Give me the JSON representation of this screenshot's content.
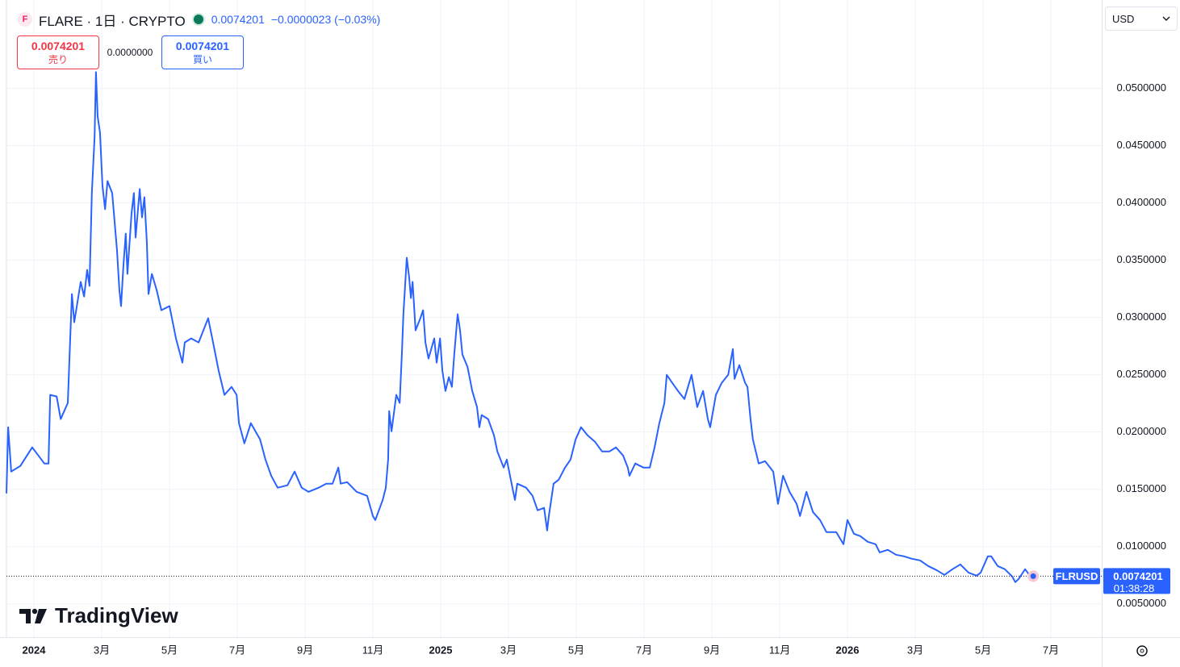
{
  "ui": {
    "title": "FLARE · 1日 · CRYPTO",
    "last": "0.0074201",
    "change": "−0.0000023 (−0.03%)",
    "sell_price": "0.0074201",
    "sell": "売り",
    "spread": "0.0000000",
    "buy_price": "0.0074201",
    "buy": "買い",
    "currency": "USD",
    "price_tag": "0.0074201",
    "countdown": "01:38:28",
    "brand": "TradingView"
  },
  "chart_data": {
    "type": "line",
    "grid": true,
    "xlim": [
      -0.81,
      31.5
    ],
    "xticks": [
      {
        "value": 0,
        "label": "2024"
      },
      {
        "value": 2,
        "label": "3月"
      },
      {
        "value": 4,
        "label": "5月"
      },
      {
        "value": 6,
        "label": "7月"
      },
      {
        "value": 8,
        "label": "9月"
      },
      {
        "value": 10,
        "label": "11月"
      },
      {
        "value": 12,
        "label": "2025"
      },
      {
        "value": 14,
        "label": "3月"
      },
      {
        "value": 16,
        "label": "5月"
      },
      {
        "value": 18,
        "label": "7月"
      },
      {
        "value": 20,
        "label": "9月"
      },
      {
        "value": 22,
        "label": "11月"
      },
      {
        "value": 24,
        "label": "2026"
      },
      {
        "value": 26,
        "label": "3月"
      },
      {
        "value": 28,
        "label": "5月"
      },
      {
        "value": 30,
        "label": "7月"
      }
    ],
    "ylim": [
      0.0021,
      0.0577
    ],
    "yticks": [
      {
        "value": 0.005,
        "label": "0.0050000"
      },
      {
        "value": 0.01,
        "label": "0.0100000"
      },
      {
        "value": 0.015,
        "label": "0.0150000"
      },
      {
        "value": 0.02,
        "label": "0.0200000"
      },
      {
        "value": 0.025,
        "label": "0.0250000"
      },
      {
        "value": 0.03,
        "label": "0.0300000"
      },
      {
        "value": 0.035,
        "label": "0.0350000"
      },
      {
        "value": 0.04,
        "label": "0.0400000"
      },
      {
        "value": 0.045,
        "label": "0.0450000"
      },
      {
        "value": 0.05,
        "label": "0.0500000"
      }
    ],
    "series": [
      {
        "name": "FLRUSD",
        "color": "#2962ff",
        "x": [
          -0.81,
          -0.76,
          -0.67,
          -0.4,
          -0.05,
          0.31,
          0.43,
          0.48,
          0.67,
          0.79,
          1.0,
          1.07,
          1.12,
          1.19,
          1.38,
          1.48,
          1.57,
          1.64,
          1.71,
          1.79,
          1.83,
          1.88,
          1.95,
          2.02,
          2.1,
          2.17,
          2.31,
          2.45,
          2.52,
          2.57,
          2.64,
          2.71,
          2.76,
          2.88,
          2.95,
          3.0,
          3.12,
          3.19,
          3.26,
          3.33,
          3.38,
          3.48,
          3.62,
          3.76,
          4.0,
          4.19,
          4.38,
          4.45,
          4.64,
          4.86,
          5.14,
          5.31,
          5.45,
          5.62,
          5.83,
          5.98,
          6.05,
          6.21,
          6.4,
          6.67,
          6.83,
          7.0,
          7.19,
          7.48,
          7.69,
          7.9,
          8.1,
          8.4,
          8.62,
          8.81,
          8.98,
          9.05,
          9.24,
          9.52,
          9.83,
          10.0,
          10.07,
          10.29,
          10.38,
          10.45,
          10.48,
          10.55,
          10.69,
          10.79,
          10.86,
          10.9,
          11.0,
          11.07,
          11.12,
          11.17,
          11.26,
          11.4,
          11.48,
          11.55,
          11.64,
          11.81,
          11.88,
          11.98,
          12.05,
          12.14,
          12.24,
          12.33,
          12.4,
          12.5,
          12.57,
          12.64,
          12.79,
          12.93,
          13.07,
          13.14,
          13.21,
          13.4,
          13.57,
          13.67,
          13.86,
          13.95,
          14.14,
          14.19,
          14.26,
          14.52,
          14.71,
          14.86,
          15.05,
          15.14,
          15.19,
          15.33,
          15.48,
          15.67,
          15.83,
          15.98,
          16.14,
          16.33,
          16.55,
          16.76,
          16.98,
          17.17,
          17.38,
          17.52,
          17.57,
          17.74,
          17.98,
          18.17,
          18.31,
          18.45,
          18.6,
          18.67,
          18.83,
          19.0,
          19.19,
          19.4,
          19.57,
          19.74,
          19.88,
          19.95,
          20.12,
          20.29,
          20.48,
          20.62,
          20.67,
          20.81,
          20.98,
          21.05,
          21.14,
          21.21,
          21.38,
          21.57,
          21.81,
          21.95,
          22.1,
          22.29,
          22.5,
          22.6,
          22.79,
          22.98,
          23.19,
          23.38,
          23.67,
          23.88,
          24.0,
          24.19,
          24.38,
          24.6,
          24.83,
          24.95,
          25.19,
          25.43,
          25.67,
          25.9,
          26.14,
          26.38,
          26.62,
          26.86,
          27.1,
          27.33,
          27.57,
          27.81,
          27.93,
          28.14,
          28.24,
          28.43,
          28.64,
          28.86,
          28.95,
          29.05,
          29.24,
          29.38,
          29.48
        ],
        "values": [
          0.01465,
          0.02042,
          0.01655,
          0.01704,
          0.01866,
          0.01725,
          0.01725,
          0.02324,
          0.0231,
          0.02113,
          0.02254,
          0.02817,
          0.03204,
          0.02958,
          0.0331,
          0.03183,
          0.03415,
          0.03275,
          0.04085,
          0.04577,
          0.05141,
          0.04754,
          0.04613,
          0.04155,
          0.03944,
          0.0419,
          0.04085,
          0.03592,
          0.03239,
          0.03099,
          0.03451,
          0.03732,
          0.0338,
          0.03909,
          0.04085,
          0.03697,
          0.0412,
          0.03873,
          0.04049,
          0.03662,
          0.03204,
          0.0338,
          0.03239,
          0.03063,
          0.03099,
          0.02817,
          0.02606,
          0.02782,
          0.02817,
          0.02782,
          0.02993,
          0.02746,
          0.02535,
          0.02324,
          0.02394,
          0.02324,
          0.02077,
          0.01901,
          0.02077,
          0.01936,
          0.0176,
          0.01619,
          0.01514,
          0.01535,
          0.01655,
          0.01514,
          0.01478,
          0.01514,
          0.01549,
          0.01549,
          0.0169,
          0.01549,
          0.01563,
          0.01478,
          0.01443,
          0.01267,
          0.01232,
          0.01408,
          0.01514,
          0.0176,
          0.02183,
          0.02006,
          0.02324,
          0.02254,
          0.02711,
          0.03028,
          0.03521,
          0.03345,
          0.03169,
          0.0331,
          0.02887,
          0.02993,
          0.03063,
          0.02782,
          0.02641,
          0.02817,
          0.02606,
          0.02817,
          0.02535,
          0.02359,
          0.02479,
          0.02394,
          0.02676,
          0.03028,
          0.02887,
          0.02676,
          0.0257,
          0.02359,
          0.02218,
          0.02042,
          0.02148,
          0.02113,
          0.01972,
          0.01831,
          0.0169,
          0.0176,
          0.01478,
          0.01408,
          0.01549,
          0.01514,
          0.01443,
          0.01317,
          0.01338,
          0.01141,
          0.01267,
          0.01549,
          0.01584,
          0.0169,
          0.0176,
          0.01936,
          0.02042,
          0.01972,
          0.01915,
          0.01831,
          0.01831,
          0.01866,
          0.01795,
          0.0169,
          0.01619,
          0.01725,
          0.0169,
          0.0169,
          0.01866,
          0.02077,
          0.02254,
          0.02499,
          0.02429,
          0.02359,
          0.02288,
          0.02499,
          0.02218,
          0.02359,
          0.02113,
          0.02042,
          0.02324,
          0.02429,
          0.02499,
          0.02724,
          0.02464,
          0.02584,
          0.02429,
          0.02394,
          0.02113,
          0.01936,
          0.01725,
          0.01746,
          0.01655,
          0.01373,
          0.01619,
          0.01478,
          0.01373,
          0.01267,
          0.01478,
          0.01302,
          0.01232,
          0.01126,
          0.01126,
          0.01021,
          0.01232,
          0.01112,
          0.01091,
          0.01042,
          0.01021,
          0.0095,
          0.00972,
          0.00929,
          0.00915,
          0.00894,
          0.0088,
          0.00831,
          0.00796,
          0.00753,
          0.00803,
          0.00845,
          0.00774,
          0.00746,
          0.00774,
          0.00915,
          0.00915,
          0.00831,
          0.00803,
          0.00739,
          0.0069,
          0.00718,
          0.00803,
          0.00746,
          0.0074201
        ]
      }
    ]
  }
}
